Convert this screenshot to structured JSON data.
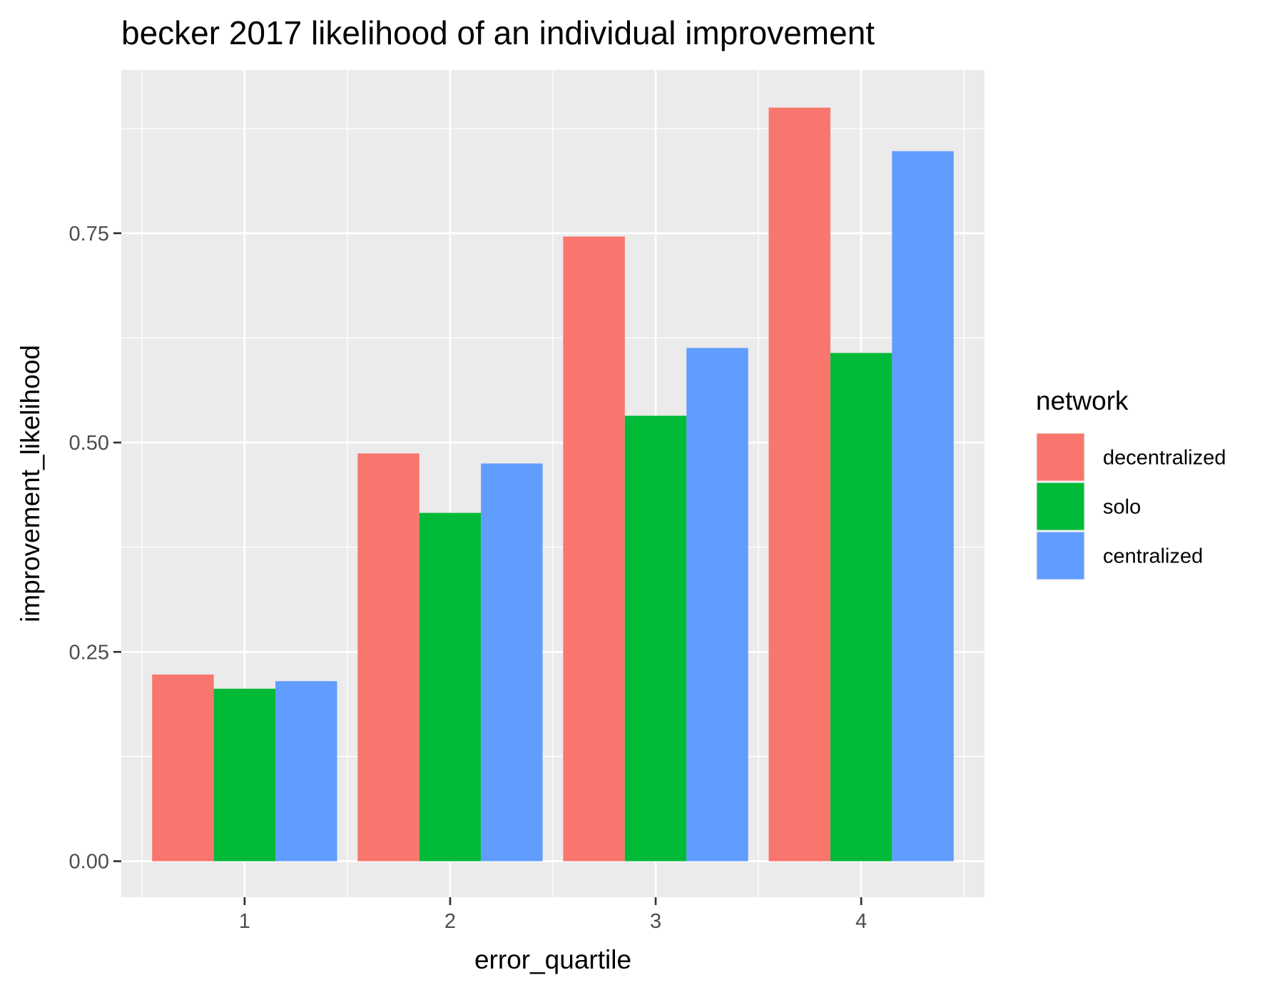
{
  "chart_data": {
    "type": "bar",
    "title": "becker 2017 likelihood of an individual improvement",
    "xlabel": "error_quartile",
    "ylabel": "improvement_likelihood",
    "categories": [
      "1",
      "2",
      "3",
      "4"
    ],
    "series": [
      {
        "name": "decentralized",
        "values": [
          0.223,
          0.487,
          0.746,
          0.9
        ],
        "color": "#F8766D"
      },
      {
        "name": "solo",
        "values": [
          0.206,
          0.416,
          0.532,
          0.607
        ],
        "color": "#00BA38"
      },
      {
        "name": "centralized",
        "values": [
          0.215,
          0.475,
          0.613,
          0.848
        ],
        "color": "#619CFF"
      }
    ],
    "ylim": [
      -0.043,
      0.945
    ],
    "yticks": [
      0,
      0.25,
      0.5,
      0.75
    ],
    "ytick_labels": [
      "0.00",
      "0.25",
      "0.50",
      "0.75"
    ],
    "grid": true,
    "legend": {
      "title": "network",
      "position": "right"
    },
    "colors": {
      "panel_background": "#EBEBEB",
      "grid": "#FFFFFF"
    }
  }
}
